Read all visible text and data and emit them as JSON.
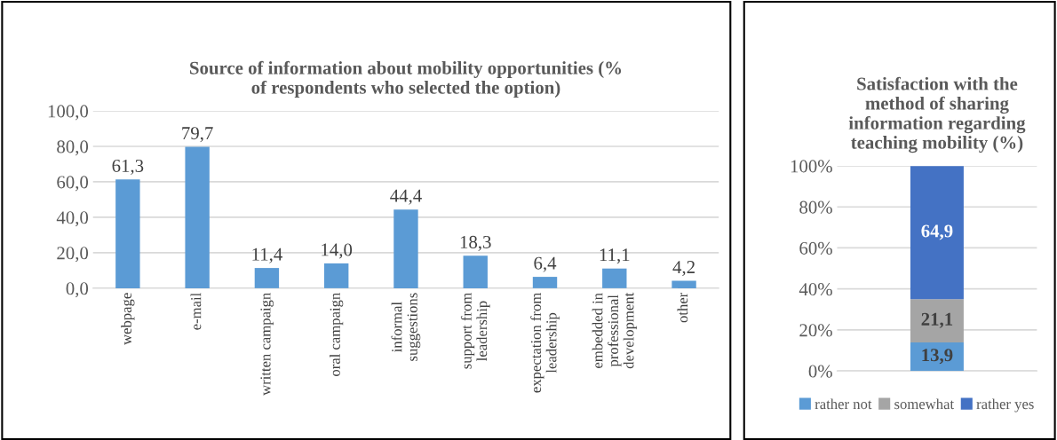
{
  "chart_data": [
    {
      "type": "bar",
      "title": "Source of information about mobility opportunities (% of respondents who selected the option)",
      "categories": [
        "webpage",
        "e-mail",
        "written campaign",
        "oral campaign",
        "informal suggestions",
        "support from leadership",
        "expectation from leadership",
        "embedded in professional development",
        "other"
      ],
      "values": [
        61.3,
        79.7,
        11.4,
        14.0,
        44.4,
        18.3,
        6.4,
        11.1,
        4.2
      ],
      "value_labels": [
        "61,3",
        "79,7",
        "11,4",
        "14,0",
        "44,4",
        "18,3",
        "6,4",
        "11,1",
        "4,2"
      ],
      "color": "#5b9bd5",
      "ylim": [
        0,
        100
      ],
      "yticks": [
        {
          "value": 0,
          "label": "0,0"
        },
        {
          "value": 20,
          "label": "20,0"
        },
        {
          "value": 40,
          "label": "40,0"
        },
        {
          "value": 60,
          "label": "60,0"
        },
        {
          "value": 80,
          "label": "80,0"
        },
        {
          "value": 100,
          "label": "100,0"
        }
      ],
      "grid": "y"
    },
    {
      "type": "bar",
      "title": "Satisfaction with the method of sharing information regarding teaching mobility (%)",
      "categories": [
        null
      ],
      "stacked": true,
      "series": [
        {
          "name": "rather not",
          "color": "#5b9bd5",
          "values": [
            13.9
          ],
          "value_labels": [
            "13,9"
          ]
        },
        {
          "name": "somewhat",
          "color": "#a5a5a5",
          "values": [
            21.1
          ],
          "value_labels": [
            "21,1"
          ]
        },
        {
          "name": "rather yes",
          "color": "#4472c4",
          "values": [
            64.9
          ],
          "value_labels": [
            "64,9"
          ]
        }
      ],
      "ylim": [
        0,
        100
      ],
      "yticks": [
        {
          "value": 0,
          "label": "0%"
        },
        {
          "value": 20,
          "label": "20%"
        },
        {
          "value": 40,
          "label": "40%"
        },
        {
          "value": 60,
          "label": "60%"
        },
        {
          "value": 80,
          "label": "80%"
        },
        {
          "value": 100,
          "label": "100%"
        }
      ],
      "grid": "y",
      "legend": "bottom"
    }
  ]
}
